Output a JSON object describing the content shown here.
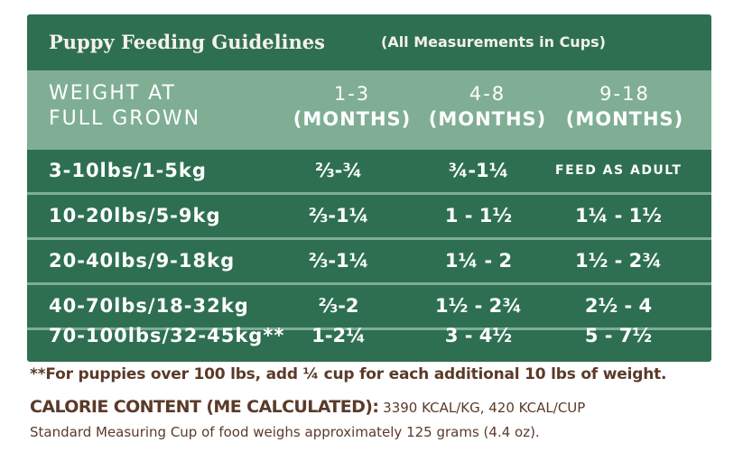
{
  "table": {
    "title": "Puppy Feeding Guidelines",
    "subtitle": "(All Measurements in Cups)",
    "header": {
      "weight_line1": "WEIGHT AT",
      "weight_line2": "FULL GROWN",
      "cols": [
        {
          "range": "1-3",
          "unit": "(MONTHS)"
        },
        {
          "range": "4-8",
          "unit": "(MONTHS)"
        },
        {
          "range": "9-18",
          "unit": "(MONTHS)"
        }
      ]
    },
    "rows": [
      {
        "weight": "3-10lbs/1-5kg",
        "c1": "⅔-¾",
        "c2": "¾-1¼",
        "c3": "FEED AS ADULT"
      },
      {
        "weight": "10-20lbs/5-9kg",
        "c1": "⅔-1¼",
        "c2": "1 - 1½",
        "c3": "1¼ - 1½"
      },
      {
        "weight": "20-40lbs/9-18kg",
        "c1": "⅔-1¼",
        "c2": "1¼ - 2",
        "c3": "1½ - 2¾"
      },
      {
        "weight": "40-70lbs/18-32kg",
        "c1": "⅔-2",
        "c2": "1½ - 2¾",
        "c3": "2½ - 4"
      },
      {
        "weight": "70-100lbs/32-45kg**",
        "c1": "1-2¼",
        "c2": "3 - 4½",
        "c3": "5 - 7½"
      }
    ]
  },
  "footer": {
    "note": "**For puppies over 100 lbs, add ¼ cup for each additional 10 lbs of weight.",
    "calorie_label": "CALORIE CONTENT (ME CALCULATED):",
    "calorie_value": " 3390 KCAL/KG, 420 KCAL/CUP",
    "standard": "Standard Measuring Cup of food weighs approximately 125 grams (4.4 oz)."
  },
  "colors": {
    "panel": "#2e6f52",
    "header": "#7fae95",
    "text_brown": "#5b3a29"
  }
}
